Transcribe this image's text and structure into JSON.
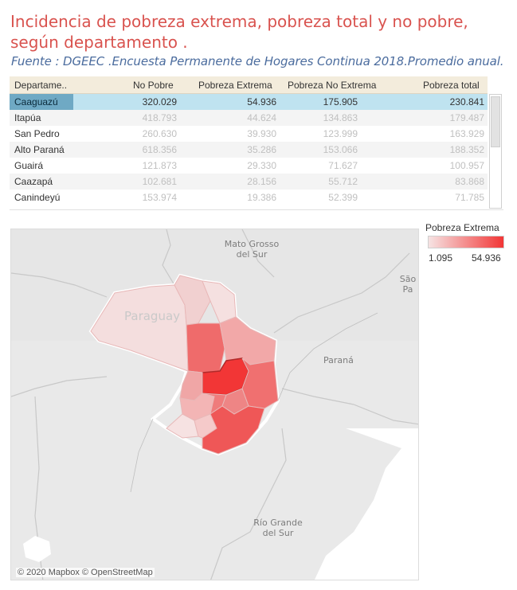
{
  "title": "Incidencia de pobreza extrema, pobreza total y no pobre, según departamento .",
  "subtitle": "Fuente : DGEEC .Encuesta Permanente de Hogares Continua  2018.Promedio anual.",
  "table": {
    "headers": [
      "Departame..",
      "No Pobre",
      "Pobreza  Extrema",
      "Pobreza No  Extrema",
      "Pobreza total"
    ],
    "rows": [
      {
        "dept": "Caaguazú",
        "no_pobre": "320.029",
        "extrema": "54.936",
        "no_extrema": "175.905",
        "total": "230.841",
        "selected": true
      },
      {
        "dept": "Itapúa",
        "no_pobre": "418.793",
        "extrema": "44.624",
        "no_extrema": "134.863",
        "total": "179.487"
      },
      {
        "dept": "San Pedro",
        "no_pobre": "260.630",
        "extrema": "39.930",
        "no_extrema": "123.999",
        "total": "163.929"
      },
      {
        "dept": "Alto Paraná",
        "no_pobre": "618.356",
        "extrema": "35.286",
        "no_extrema": "153.066",
        "total": "188.352"
      },
      {
        "dept": "Guairá",
        "no_pobre": "121.873",
        "extrema": "29.330",
        "no_extrema": "71.627",
        "total": "100.957"
      },
      {
        "dept": "Caazapá",
        "no_pobre": "102.681",
        "extrema": "28.156",
        "no_extrema": "55.712",
        "total": "83.868"
      },
      {
        "dept": "Canindeyú",
        "no_pobre": "153.974",
        "extrema": "19.386",
        "no_extrema": "52.399",
        "total": "71.785"
      }
    ]
  },
  "legend": {
    "title": "Pobreza  Extrema",
    "min": "1.095",
    "max": "54.936",
    "color_low": "#f6e3e3",
    "color_high": "#f23636"
  },
  "map": {
    "labels": {
      "mato_grosso": "Mato Grosso\ndel Sur",
      "sao_paulo": "São Pa",
      "parana": "Paraná",
      "rio_grande": "Río Grande\ndel Sur",
      "paraguay": "Paraguay"
    },
    "attribution": "© 2020 Mapbox © OpenStreetMap"
  }
}
